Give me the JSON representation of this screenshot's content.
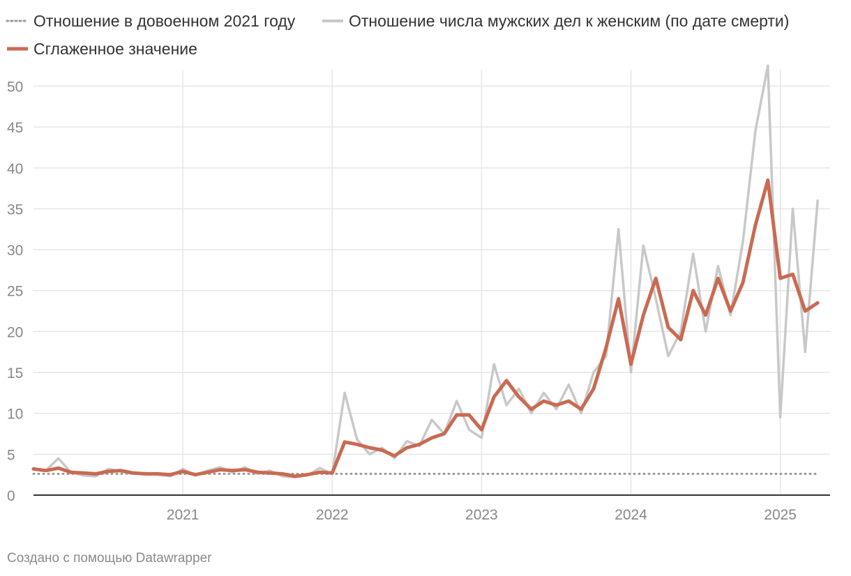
{
  "colors": {
    "baseline": "#999999",
    "raw": "#c8c8c8",
    "smooth": "#c96a52",
    "grid": "#e6e6e6",
    "axis": "#333333"
  },
  "footer": {
    "credit": "Создано с помощью Datawrapper"
  },
  "chart_data": {
    "type": "line",
    "title": "",
    "xlabel": "",
    "ylabel": "",
    "x_range": [
      "2020-01",
      "2025-05"
    ],
    "ylim": [
      0,
      52
    ],
    "y_ticks": [
      0,
      5,
      10,
      15,
      20,
      25,
      30,
      35,
      40,
      45,
      50
    ],
    "x_ticks": [
      {
        "date": "2021-01",
        "label": "2021"
      },
      {
        "date": "2022-01",
        "label": "2022"
      },
      {
        "date": "2023-01",
        "label": "2023"
      },
      {
        "date": "2024-01",
        "label": "2024"
      },
      {
        "date": "2025-01",
        "label": "2025"
      }
    ],
    "grid": true,
    "legend_position": "top-left",
    "series": [
      {
        "name": "Отношение в довоенном 2021 году",
        "style": "dotted",
        "color": "#999999",
        "x": [
          "2020-01",
          "2025-04"
        ],
        "y": [
          2.6,
          2.6
        ]
      },
      {
        "name": "Отношение числа мужских дел к женским (по дате смерти)",
        "style": "solid",
        "color": "#c8c8c8",
        "x": [
          "2020-01",
          "2020-02",
          "2020-03",
          "2020-04",
          "2020-05",
          "2020-06",
          "2020-07",
          "2020-08",
          "2020-09",
          "2020-10",
          "2020-11",
          "2020-12",
          "2021-01",
          "2021-02",
          "2021-03",
          "2021-04",
          "2021-05",
          "2021-06",
          "2021-07",
          "2021-08",
          "2021-09",
          "2021-10",
          "2021-11",
          "2021-12",
          "2022-01",
          "2022-02",
          "2022-03",
          "2022-04",
          "2022-05",
          "2022-06",
          "2022-07",
          "2022-08",
          "2022-09",
          "2022-10",
          "2022-11",
          "2022-12",
          "2023-01",
          "2023-02",
          "2023-03",
          "2023-04",
          "2023-05",
          "2023-06",
          "2023-07",
          "2023-08",
          "2023-09",
          "2023-10",
          "2023-11",
          "2023-12",
          "2024-01",
          "2024-02",
          "2024-03",
          "2024-04",
          "2024-05",
          "2024-06",
          "2024-07",
          "2024-08",
          "2024-09",
          "2024-10",
          "2024-11",
          "2024-12",
          "2025-01",
          "2025-02",
          "2025-03",
          "2025-04"
        ],
        "y": [
          3.3,
          3.0,
          4.5,
          2.8,
          2.4,
          2.3,
          3.2,
          2.9,
          2.6,
          2.7,
          2.5,
          2.3,
          3.2,
          2.4,
          3.0,
          3.4,
          2.8,
          3.4,
          2.6,
          3.0,
          2.3,
          2.2,
          2.4,
          3.3,
          2.6,
          12.5,
          6.8,
          5.0,
          5.8,
          4.5,
          6.6,
          6.0,
          9.2,
          7.5,
          11.5,
          8.0,
          7.0,
          16.0,
          11.0,
          13.0,
          10.0,
          12.5,
          10.5,
          13.5,
          10.0,
          15.0,
          17.0,
          32.5,
          15.0,
          30.5,
          24.0,
          17.0,
          20.0,
          29.5,
          20.0,
          28.0,
          22.0,
          31.0,
          44.5,
          52.5,
          9.5,
          35.0,
          17.5,
          36.0
        ]
      },
      {
        "name": "Сглаженное значение",
        "style": "solid",
        "color": "#c96a52",
        "x": [
          "2020-01",
          "2020-02",
          "2020-03",
          "2020-04",
          "2020-05",
          "2020-06",
          "2020-07",
          "2020-08",
          "2020-09",
          "2020-10",
          "2020-11",
          "2020-12",
          "2021-01",
          "2021-02",
          "2021-03",
          "2021-04",
          "2021-05",
          "2021-06",
          "2021-07",
          "2021-08",
          "2021-09",
          "2021-10",
          "2021-11",
          "2021-12",
          "2022-01",
          "2022-02",
          "2022-03",
          "2022-04",
          "2022-05",
          "2022-06",
          "2022-07",
          "2022-08",
          "2022-09",
          "2022-10",
          "2022-11",
          "2022-12",
          "2023-01",
          "2023-02",
          "2023-03",
          "2023-04",
          "2023-05",
          "2023-06",
          "2023-07",
          "2023-08",
          "2023-09",
          "2023-10",
          "2023-11",
          "2023-12",
          "2024-01",
          "2024-02",
          "2024-03",
          "2024-04",
          "2024-05",
          "2024-06",
          "2024-07",
          "2024-08",
          "2024-09",
          "2024-10",
          "2024-11",
          "2024-12",
          "2025-01",
          "2025-02",
          "2025-03",
          "2025-04"
        ],
        "y": [
          3.2,
          3.0,
          3.3,
          2.8,
          2.7,
          2.6,
          2.9,
          3.0,
          2.7,
          2.6,
          2.6,
          2.5,
          2.9,
          2.5,
          2.8,
          3.1,
          3.0,
          3.1,
          2.8,
          2.7,
          2.6,
          2.3,
          2.5,
          2.8,
          2.7,
          6.5,
          6.2,
          5.8,
          5.5,
          4.8,
          5.8,
          6.2,
          7.0,
          7.5,
          9.8,
          9.8,
          8.0,
          12.0,
          14.0,
          12.0,
          10.5,
          11.5,
          11.0,
          11.5,
          10.5,
          13.0,
          18.0,
          24.0,
          16.0,
          22.0,
          26.5,
          20.5,
          19.0,
          25.0,
          22.0,
          26.5,
          22.5,
          26.0,
          33.0,
          38.5,
          26.5,
          27.0,
          22.5,
          23.5
        ]
      }
    ]
  }
}
